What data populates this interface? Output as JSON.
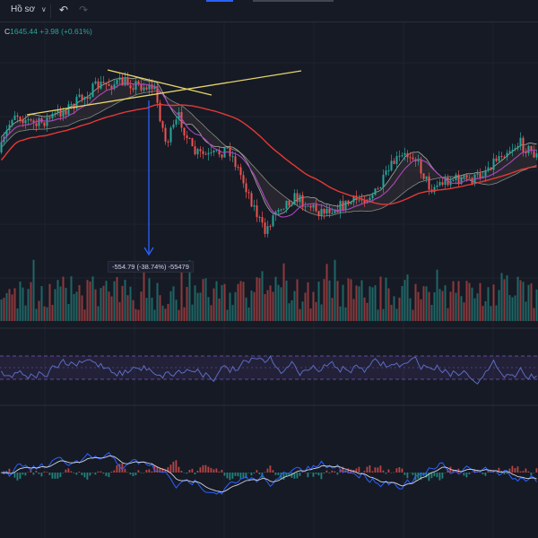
{
  "toolbar": {
    "profile_label": "Hồ sơ",
    "profile_chevron_icon": "chevron-down-icon",
    "undo_icon": "undo-icon",
    "redo_icon": "redo-icon"
  },
  "legend": {
    "close_prefix": "C",
    "close_value": "1645.44",
    "change": "+9.98 (+0.61%)"
  },
  "measurement": {
    "label": "-554.79 (-38.74%) -55479"
  },
  "colors": {
    "background": "#161a25",
    "up": "#26a69a",
    "down": "#ef5350",
    "ma_long": "#e53935",
    "ma_short": "#ab47bc",
    "trendline": "#e6d36a",
    "measure_arrow": "#2962ff",
    "rsi_line": "#5c6bc0",
    "rsi_band": "#7e57c2"
  }
}
